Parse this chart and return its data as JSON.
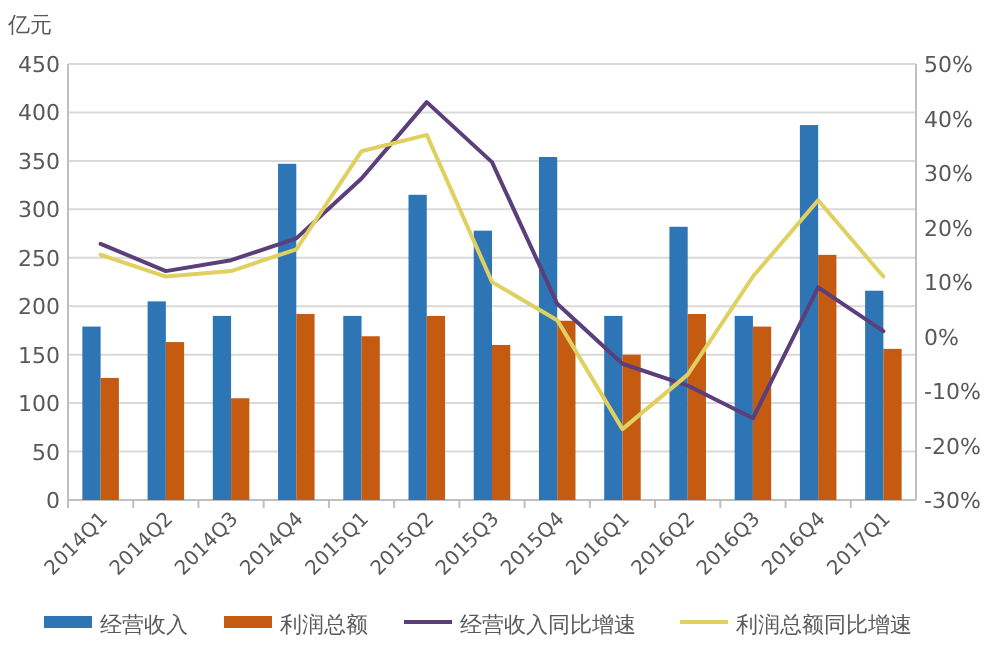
{
  "chart_data": {
    "type": "bar",
    "ylabel": "亿元",
    "categories": [
      "2014Q1",
      "2014Q2",
      "2014Q3",
      "2014Q4",
      "2015Q1",
      "2015Q2",
      "2015Q3",
      "2015Q4",
      "2016Q1",
      "2016Q2",
      "2016Q3",
      "2016Q4",
      "2017Q1"
    ],
    "series": [
      {
        "name": "经营收入",
        "color": "#2e75b6",
        "values": [
          179,
          205,
          190,
          347,
          190,
          315,
          278,
          354,
          190,
          282,
          190,
          387,
          216
        ]
      },
      {
        "name": "利润总额",
        "color": "#c55a11",
        "values": [
          126,
          163,
          105,
          192,
          169,
          190,
          160,
          185,
          150,
          192,
          179,
          253,
          156
        ]
      },
      {
        "name": "经营收入同比增速",
        "type": "line",
        "axis": "y2",
        "color": "#5b3f7a",
        "values": [
          17,
          12,
          14,
          18,
          29,
          43,
          32,
          6,
          -5,
          -9,
          -15,
          9,
          1
        ]
      },
      {
        "name": "利润总额同比增速",
        "type": "line",
        "axis": "y2",
        "color": "#e0d060",
        "values": [
          15,
          11,
          12,
          16,
          34,
          37,
          10,
          3,
          -17,
          -7,
          11,
          25,
          11
        ]
      }
    ],
    "ylim": [
      0,
      450
    ],
    "yticks": [
      0,
      50,
      100,
      150,
      200,
      250,
      300,
      350,
      400,
      450
    ],
    "y2lim": [
      -30,
      50
    ],
    "y2ticks": [
      {
        "value": -30,
        "label": "-30%"
      },
      {
        "value": -20,
        "label": "-20%"
      },
      {
        "value": -10,
        "label": "-10%"
      },
      {
        "value": 0,
        "label": "0%"
      },
      {
        "value": 10,
        "label": "10%"
      },
      {
        "value": 20,
        "label": "20%"
      },
      {
        "value": 30,
        "label": "30%"
      },
      {
        "value": 40,
        "label": "40%"
      },
      {
        "value": 50,
        "label": "50%"
      }
    ],
    "grid": "y",
    "legend": "bottom",
    "marker": "none"
  }
}
